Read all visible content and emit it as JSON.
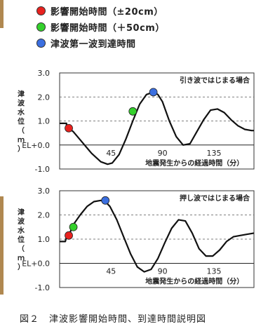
{
  "legend": {
    "items": [
      {
        "label": "影響開始時間（±20cm）",
        "color": "#e8221f"
      },
      {
        "label": "影響開始時間（＋50cm）",
        "color": "#34d12c"
      },
      {
        "label": "津波第一波到達時間",
        "color": "#3b6fe0"
      }
    ]
  },
  "caption": "図２　津波影響開始時間、到達時間説明図",
  "chart_data": [
    {
      "type": "line",
      "title": "引き波ではじまる場合",
      "xlabel": "地震発生からの経過時間（分）",
      "ylabel": "津波水位（ｍ）",
      "ylim": [
        -1.0,
        3.0
      ],
      "xlim": [
        0,
        170
      ],
      "y_ticks": [
        "3.0",
        "2.0",
        "1.0",
        "EL+0.0",
        "-1.0"
      ],
      "x_ticks": [
        "45",
        "90",
        "135"
      ],
      "grid": true,
      "series": [
        {
          "x": [
            0,
            6,
            6,
            8,
            12,
            20,
            28,
            36,
            42,
            46,
            52,
            58,
            64,
            70,
            76,
            82,
            86,
            90,
            96,
            102,
            108,
            114,
            120,
            126,
            132,
            138,
            144,
            150,
            156,
            162,
            168,
            170
          ],
          "y": [
            0.9,
            0.9,
            0.8,
            0.7,
            0.55,
            0.1,
            -0.35,
            -0.7,
            -0.8,
            -0.75,
            -0.4,
            0.25,
            1.0,
            1.7,
            2.1,
            2.2,
            2.1,
            1.8,
            1.0,
            0.35,
            0.0,
            0.05,
            0.55,
            1.05,
            1.45,
            1.5,
            1.35,
            1.05,
            0.8,
            0.65,
            0.6,
            0.6
          ]
        }
      ],
      "markers": [
        {
          "x": 8,
          "y": 0.7,
          "color": "#e8221f"
        },
        {
          "x": 64,
          "y": 1.4,
          "color": "#34d12c"
        },
        {
          "x": 82,
          "y": 2.2,
          "color": "#3b6fe0"
        }
      ]
    },
    {
      "type": "line",
      "title": "押し波ではじまる場合",
      "xlabel": "地震発生からの経過時間（分）",
      "ylabel": "津波水位（ｍ）",
      "ylim": [
        -1.0,
        3.0
      ],
      "xlim": [
        0,
        170
      ],
      "y_ticks": [
        "3.0",
        "2.0",
        "1.0",
        "EL+0.0",
        "-1.0"
      ],
      "x_ticks": [
        "45",
        "90",
        "135"
      ],
      "grid": true,
      "series": [
        {
          "x": [
            0,
            5,
            6,
            8,
            12,
            18,
            24,
            30,
            36,
            40,
            44,
            50,
            56,
            62,
            68,
            74,
            80,
            86,
            92,
            98,
            104,
            110,
            116,
            122,
            128,
            134,
            140,
            146,
            152,
            158,
            164,
            170
          ],
          "y": [
            0.9,
            0.9,
            1.1,
            1.15,
            1.6,
            2.0,
            2.35,
            2.55,
            2.6,
            2.55,
            2.35,
            1.8,
            1.1,
            0.4,
            -0.15,
            -0.35,
            -0.25,
            0.2,
            0.85,
            1.45,
            1.8,
            1.75,
            1.25,
            0.6,
            0.3,
            0.3,
            0.55,
            0.9,
            1.1,
            1.15,
            1.2,
            1.25
          ]
        }
      ],
      "markers": [
        {
          "x": 8,
          "y": 1.15,
          "color": "#e8221f"
        },
        {
          "x": 12,
          "y": 1.5,
          "color": "#34d12c"
        },
        {
          "x": 40,
          "y": 2.6,
          "color": "#3b6fe0"
        }
      ]
    }
  ]
}
